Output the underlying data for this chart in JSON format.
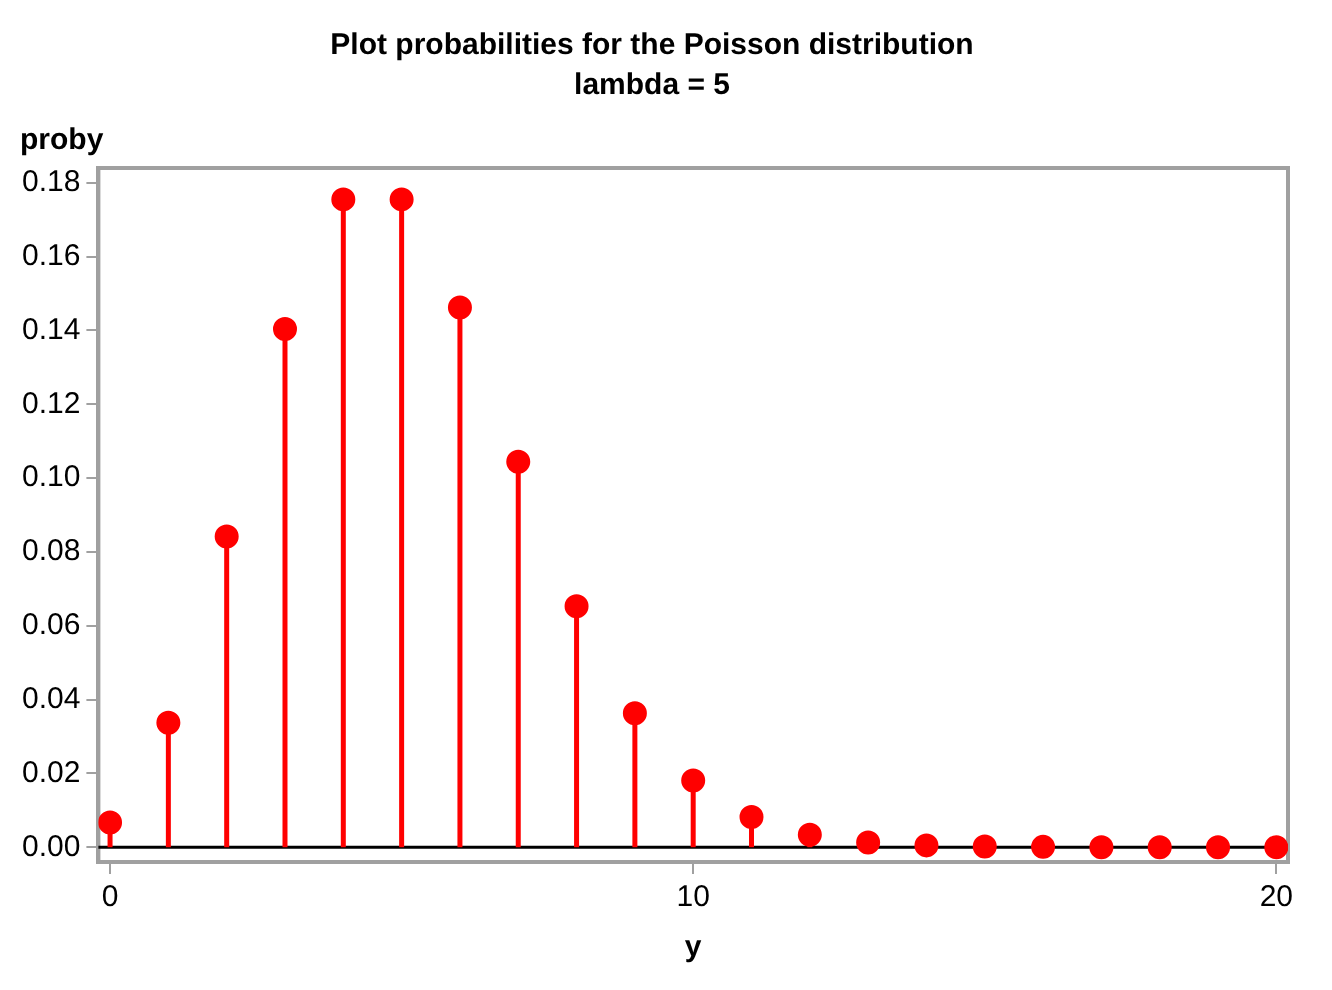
{
  "chart_data": {
    "type": "lollipop",
    "title": "Plot probabilities for the Poisson distribution",
    "subtitle": "lambda = 5",
    "xlabel": "y",
    "ylabel": "proby",
    "x": [
      0,
      1,
      2,
      3,
      4,
      5,
      6,
      7,
      8,
      9,
      10,
      11,
      12,
      13,
      14,
      15,
      16,
      17,
      18,
      19,
      20
    ],
    "series": [
      {
        "color": "#ff0000",
        "values": [
          0.0067,
          0.0337,
          0.0842,
          0.1404,
          0.1755,
          0.1755,
          0.1462,
          0.1044,
          0.0653,
          0.0363,
          0.0181,
          0.0082,
          0.0034,
          0.0013,
          0.0005,
          0.0002,
          0.0001,
          0.0,
          0.0,
          0.0,
          0.0
        ]
      }
    ],
    "xlim": [
      -0.2,
      20.2
    ],
    "xticks": [
      0,
      10,
      20
    ],
    "ylim": [
      -0.004,
      0.184
    ],
    "yticks": [
      {
        "value": 0,
        "label": "0.00"
      },
      {
        "value": 0.02,
        "label": "0.02"
      },
      {
        "value": 0.04,
        "label": "0.04"
      },
      {
        "value": 0.06,
        "label": "0.06"
      },
      {
        "value": 0.08,
        "label": "0.08"
      },
      {
        "value": 0.1,
        "label": "0.10"
      },
      {
        "value": 0.12,
        "label": "0.12"
      },
      {
        "value": 0.14,
        "label": "0.14"
      },
      {
        "value": 0.16,
        "label": "0.16"
      },
      {
        "value": 0.18,
        "label": "0.18"
      }
    ],
    "ref_lines": [
      {
        "axis": "y",
        "value": 0,
        "color": "#000000"
      }
    ],
    "marker": "circle",
    "grid": false,
    "legend": false
  }
}
